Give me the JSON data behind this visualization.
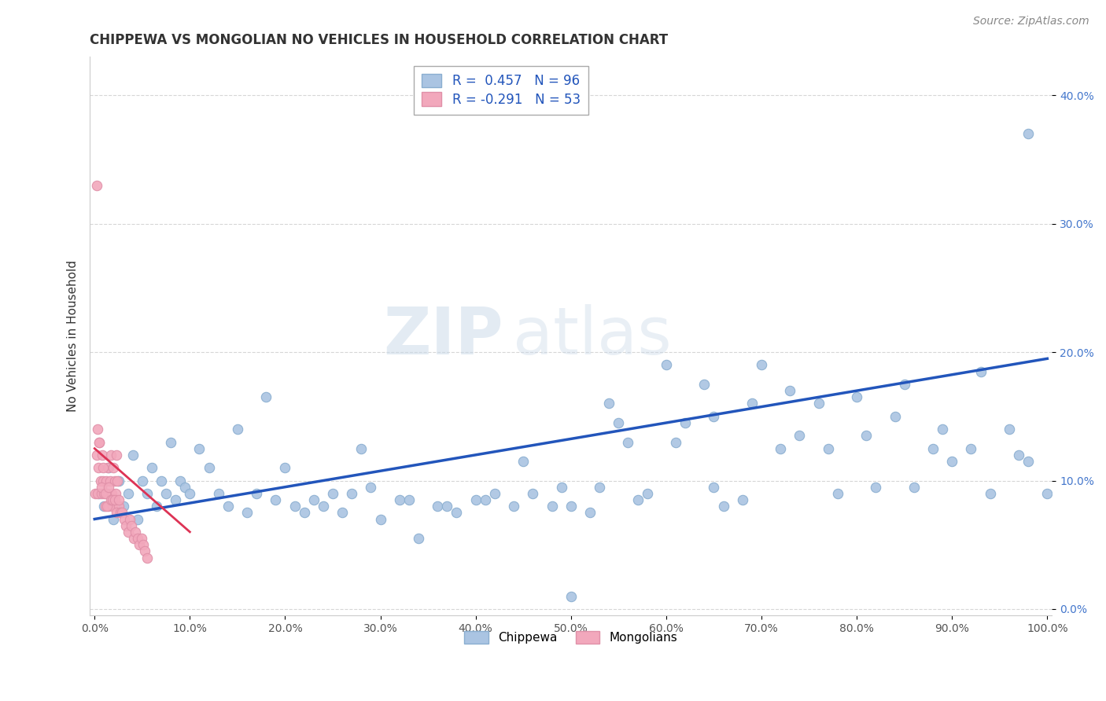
{
  "title": "CHIPPEWA VS MONGOLIAN NO VEHICLES IN HOUSEHOLD CORRELATION CHART",
  "source": "Source: ZipAtlas.com",
  "ylabel": "No Vehicles in Household",
  "xlim": [
    -0.005,
    1.005
  ],
  "ylim": [
    -0.005,
    0.43
  ],
  "xticks": [
    0.0,
    0.1,
    0.2,
    0.3,
    0.4,
    0.5,
    0.6,
    0.7,
    0.8,
    0.9,
    1.0
  ],
  "yticks": [
    0.0,
    0.1,
    0.2,
    0.3,
    0.4
  ],
  "xticklabels": [
    "0.0%",
    "10.0%",
    "20.0%",
    "30.0%",
    "40.0%",
    "50.0%",
    "60.0%",
    "70.0%",
    "80.0%",
    "90.0%",
    "100.0%"
  ],
  "yticklabels": [
    "0.0%",
    "10.0%",
    "20.0%",
    "30.0%",
    "40.0%"
  ],
  "legend_label_blue": "R =  0.457   N = 96",
  "legend_label_pink": "R = -0.291   N = 53",
  "chippewa_color": "#aac4e2",
  "mongolian_color": "#f2a8bc",
  "chippewa_edge": "#8aaed0",
  "mongolian_edge": "#e090a8",
  "blue_line_color": "#2255bb",
  "pink_line_color": "#dd3355",
  "watermark_color": "#d0dce8",
  "background_color": "#ffffff",
  "grid_color": "#cccccc",
  "title_fontsize": 12,
  "source_fontsize": 10,
  "axis_label_fontsize": 11,
  "tick_fontsize": 10,
  "legend_fontsize": 12,
  "marker_size": 80,
  "blue_line_start_x": 0.0,
  "blue_line_end_x": 1.0,
  "blue_line_start_y": 0.07,
  "blue_line_end_y": 0.195,
  "pink_line_start_x": 0.0,
  "pink_line_end_x": 0.1,
  "pink_line_start_y": 0.125,
  "pink_line_end_y": 0.06,
  "chippewa_x": [
    0.005,
    0.01,
    0.015,
    0.02,
    0.025,
    0.03,
    0.035,
    0.04,
    0.045,
    0.05,
    0.055,
    0.06,
    0.065,
    0.07,
    0.075,
    0.08,
    0.085,
    0.09,
    0.095,
    0.1,
    0.11,
    0.12,
    0.13,
    0.14,
    0.15,
    0.16,
    0.17,
    0.18,
    0.19,
    0.2,
    0.21,
    0.22,
    0.23,
    0.24,
    0.25,
    0.26,
    0.27,
    0.28,
    0.29,
    0.3,
    0.32,
    0.34,
    0.36,
    0.38,
    0.4,
    0.42,
    0.44,
    0.46,
    0.48,
    0.5,
    0.52,
    0.54,
    0.56,
    0.58,
    0.6,
    0.62,
    0.64,
    0.66,
    0.68,
    0.7,
    0.72,
    0.74,
    0.76,
    0.78,
    0.8,
    0.82,
    0.84,
    0.86,
    0.88,
    0.9,
    0.92,
    0.94,
    0.96,
    0.98,
    1.0,
    0.33,
    0.37,
    0.41,
    0.45,
    0.49,
    0.53,
    0.57,
    0.61,
    0.65,
    0.69,
    0.73,
    0.77,
    0.81,
    0.85,
    0.89,
    0.93,
    0.97,
    0.5,
    0.55,
    0.65,
    0.98
  ],
  "chippewa_y": [
    0.09,
    0.08,
    0.11,
    0.07,
    0.1,
    0.08,
    0.09,
    0.12,
    0.07,
    0.1,
    0.09,
    0.11,
    0.08,
    0.1,
    0.09,
    0.13,
    0.085,
    0.1,
    0.095,
    0.09,
    0.125,
    0.11,
    0.09,
    0.08,
    0.14,
    0.075,
    0.09,
    0.165,
    0.085,
    0.11,
    0.08,
    0.075,
    0.085,
    0.08,
    0.09,
    0.075,
    0.09,
    0.125,
    0.095,
    0.07,
    0.085,
    0.055,
    0.08,
    0.075,
    0.085,
    0.09,
    0.08,
    0.09,
    0.08,
    0.08,
    0.075,
    0.16,
    0.13,
    0.09,
    0.19,
    0.145,
    0.175,
    0.08,
    0.085,
    0.19,
    0.125,
    0.135,
    0.16,
    0.09,
    0.165,
    0.095,
    0.15,
    0.095,
    0.125,
    0.115,
    0.125,
    0.09,
    0.14,
    0.115,
    0.09,
    0.085,
    0.08,
    0.085,
    0.115,
    0.095,
    0.095,
    0.085,
    0.13,
    0.095,
    0.16,
    0.17,
    0.125,
    0.135,
    0.175,
    0.14,
    0.185,
    0.12,
    0.01,
    0.145,
    0.15,
    0.37
  ],
  "mongolian_x": [
    0.001,
    0.002,
    0.003,
    0.004,
    0.005,
    0.006,
    0.007,
    0.008,
    0.009,
    0.01,
    0.011,
    0.012,
    0.013,
    0.014,
    0.015,
    0.016,
    0.017,
    0.018,
    0.019,
    0.02,
    0.021,
    0.022,
    0.023,
    0.024,
    0.025,
    0.003,
    0.005,
    0.007,
    0.009,
    0.011,
    0.013,
    0.015,
    0.017,
    0.019,
    0.021,
    0.023,
    0.025,
    0.027,
    0.029,
    0.031,
    0.033,
    0.035,
    0.037,
    0.039,
    0.041,
    0.043,
    0.045,
    0.047,
    0.049,
    0.051,
    0.053,
    0.055,
    0.002
  ],
  "mongolian_y": [
    0.09,
    0.12,
    0.09,
    0.11,
    0.13,
    0.1,
    0.09,
    0.12,
    0.1,
    0.09,
    0.08,
    0.1,
    0.09,
    0.11,
    0.08,
    0.1,
    0.12,
    0.09,
    0.08,
    0.11,
    0.1,
    0.09,
    0.12,
    0.1,
    0.08,
    0.14,
    0.13,
    0.095,
    0.11,
    0.09,
    0.08,
    0.095,
    0.085,
    0.085,
    0.085,
    0.075,
    0.085,
    0.075,
    0.075,
    0.07,
    0.065,
    0.06,
    0.07,
    0.065,
    0.055,
    0.06,
    0.055,
    0.05,
    0.055,
    0.05,
    0.045,
    0.04,
    0.33
  ]
}
